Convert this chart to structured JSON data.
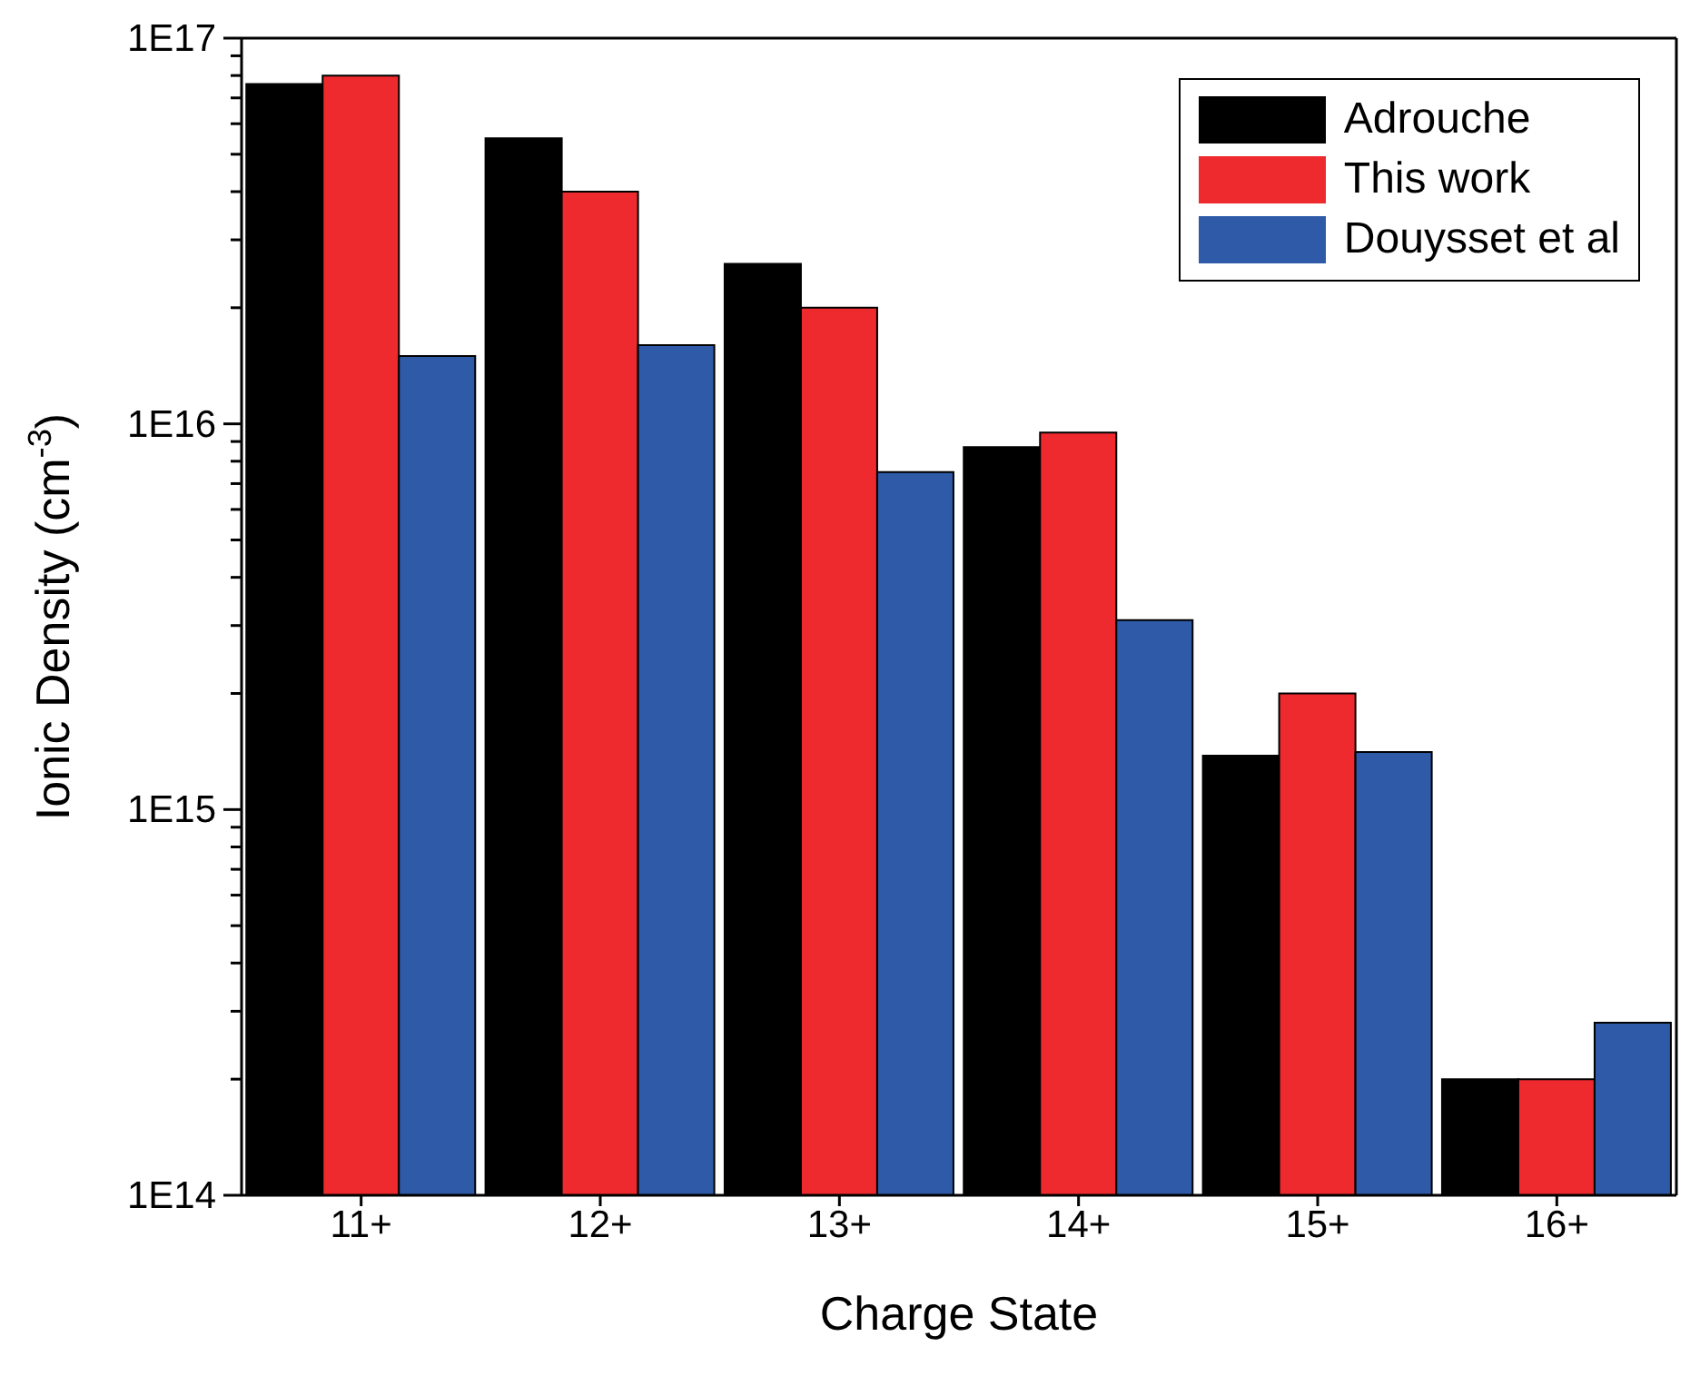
{
  "chart_data": {
    "type": "bar",
    "xlabel": "Charge State",
    "ylabel": "Ionic Density (cm$^{-3}$)",
    "categories": [
      "11+",
      "12+",
      "13+",
      "14+",
      "15+",
      "16+"
    ],
    "series": [
      {
        "name": "Adrouche",
        "color": "#000000",
        "values": [
          7.6e+16,
          5.5e+16,
          2.6e+16,
          8700000000000000.0,
          1380000000000000.0,
          200000000000000.0
        ]
      },
      {
        "name": "This work",
        "color": "#ee2a2e",
        "values": [
          8e+16,
          4e+16,
          2e+16,
          9500000000000000.0,
          2000000000000000.0,
          200000000000000.0
        ]
      },
      {
        "name": "Douysset et al",
        "color": "#2e5aa8",
        "values": [
          1.5e+16,
          1.6e+16,
          7500000000000000.0,
          3100000000000000.0,
          1410000000000000.0,
          280000000000000.0
        ]
      }
    ],
    "log": true,
    "ylim": [
      100000000000000.0,
      1e+17
    ],
    "yticks": [
      {
        "value": 100000000000000.0,
        "label": "1E14"
      },
      {
        "value": 200000000000000.0,
        "label": null
      },
      {
        "value": 300000000000000.0,
        "label": null
      },
      {
        "value": 400000000000000.0,
        "label": null
      },
      {
        "value": 500000000000000.0,
        "label": null
      },
      {
        "value": 600000000000000.0,
        "label": null
      },
      {
        "value": 700000000000000.0,
        "label": null
      },
      {
        "value": 800000000000000.0,
        "label": null
      },
      {
        "value": 900000000000000.0,
        "label": null
      },
      {
        "value": 1000000000000000.0,
        "label": "1E15"
      },
      {
        "value": 2000000000000000.0,
        "label": null
      },
      {
        "value": 3000000000000000.0,
        "label": null
      },
      {
        "value": 4000000000000000.0,
        "label": null
      },
      {
        "value": 5000000000000000.0,
        "label": null
      },
      {
        "value": 6000000000000000.0,
        "label": null
      },
      {
        "value": 7000000000000000.0,
        "label": null
      },
      {
        "value": 8000000000000000.0,
        "label": null
      },
      {
        "value": 9000000000000000.0,
        "label": null
      },
      {
        "value": 1e+16,
        "label": "1E16"
      },
      {
        "value": 2e+16,
        "label": null
      },
      {
        "value": 3e+16,
        "label": null
      },
      {
        "value": 4e+16,
        "label": null
      },
      {
        "value": 5e+16,
        "label": null
      },
      {
        "value": 6e+16,
        "label": null
      },
      {
        "value": 7e+16,
        "label": null
      },
      {
        "value": 8e+16,
        "label": null
      },
      {
        "value": 9e+16,
        "label": null
      },
      {
        "value": 1e+17,
        "label": "1E17"
      }
    ],
    "grid": false,
    "legend": "top right"
  }
}
